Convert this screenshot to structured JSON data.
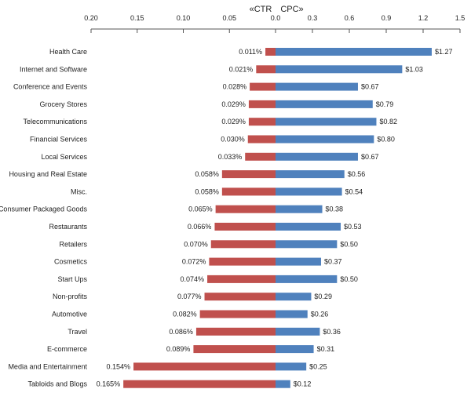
{
  "chart_data": {
    "type": "bar",
    "orientation": "horizontal-diverging",
    "left_title": "«CTR",
    "right_title": "CPC»",
    "ctr_axis": {
      "ticks": [
        0.2,
        0.15,
        0.1,
        0.05,
        0.0
      ],
      "tick_labels": [
        "0.20",
        "0.15",
        "0.10",
        "0.05",
        "0.0"
      ],
      "range": [
        0.0,
        0.2
      ]
    },
    "cpc_axis": {
      "ticks": [
        0.0,
        0.3,
        0.6,
        0.9,
        1.2,
        1.5
      ],
      "tick_labels": [
        "0.0",
        "0.3",
        "0.6",
        "0.9",
        "1.2",
        "1.5"
      ],
      "range": [
        0.0,
        1.5
      ]
    },
    "categories": [
      "Health Care",
      "Internet and Software",
      "Conference and Events",
      "Grocery Stores",
      "Telecommunications",
      "Financial Services",
      "Local Services",
      "Housing and Real Estate",
      "Misc.",
      "Consumer Packaged Goods",
      "Restaurants",
      "Retailers",
      "Cosmetics",
      "Start Ups",
      "Non-profits",
      "Automotive",
      "Travel",
      "E-commerce",
      "Media and Entertainment",
      "Tabloids and Blogs"
    ],
    "series": [
      {
        "values": [
          0.011,
          0.021,
          0.028,
          0.029,
          0.029,
          0.03,
          0.033,
          0.058,
          0.058,
          0.065,
          0.066,
          0.07,
          0.072,
          0.074,
          0.077,
          0.082,
          0.086,
          0.089,
          0.154,
          0.165
        ],
        "labels": [
          "0.011%",
          "0.021%",
          "0.028%",
          "0.029%",
          "0.029%",
          "0.030%",
          "0.033%",
          "0.058%",
          "0.058%",
          "0.065%",
          "0.066%",
          "0.070%",
          "0.072%",
          "0.074%",
          "0.077%",
          "0.082%",
          "0.086%",
          "0.089%",
          "0.154%",
          "0.165%"
        ],
        "color": "#c0504d"
      },
      {
        "values": [
          1.27,
          1.03,
          0.67,
          0.79,
          0.82,
          0.8,
          0.67,
          0.56,
          0.54,
          0.38,
          0.53,
          0.5,
          0.37,
          0.5,
          0.29,
          0.26,
          0.36,
          0.31,
          0.25,
          0.12
        ],
        "labels": [
          "$1.27",
          "$1.03",
          "$0.67",
          "$0.79",
          "$0.82",
          "$0.80",
          "$0.67",
          "$0.56",
          "$0.54",
          "$0.38",
          "$0.53",
          "$0.50",
          "$0.37",
          "$0.50",
          "$0.29",
          "$0.26",
          "$0.36",
          "$0.31",
          "$0.25",
          "$0.12"
        ],
        "color": "#4f81bd"
      }
    ]
  }
}
